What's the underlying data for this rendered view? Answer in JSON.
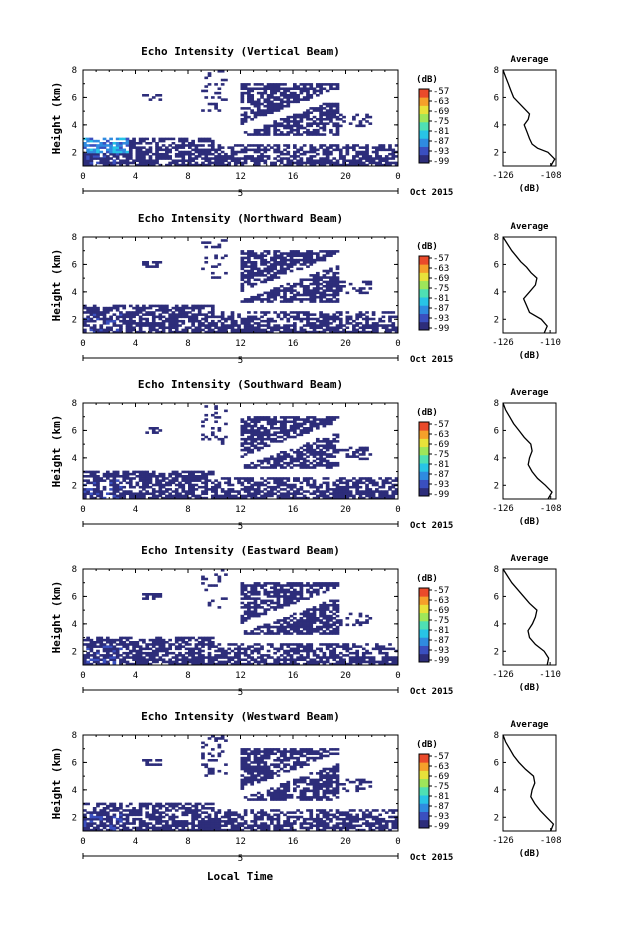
{
  "figure": {
    "xlabel": "Local Time",
    "date_label": "Oct 2015",
    "day_label": "5",
    "cbar_unit": "(dB)",
    "avg_title": "Average",
    "avg_xlabel": "(dB)",
    "colorscale": [
      "#2d2d7a",
      "#3a4fbf",
      "#2f8be0",
      "#28c4e6",
      "#4ee0b4",
      "#9ee65a",
      "#e8e23a",
      "#f5a02a",
      "#ea4a2a"
    ]
  },
  "chart_data": [
    {
      "type": "heatmap",
      "title": "Echo Intensity (Vertical Beam)",
      "ylabel": "Height (km)",
      "xlim": [
        0,
        24
      ],
      "ylim": [
        1,
        8
      ],
      "xticks": [
        "0",
        "4",
        "8",
        "12",
        "16",
        "20",
        "0"
      ],
      "yticks": [
        "2",
        "4",
        "6",
        "8"
      ],
      "colorbar": {
        "unit": "(dB)",
        "ticks": [
          "-57",
          "-63",
          "-69",
          "-75",
          "-81",
          "-87",
          "-93",
          "-99"
        ]
      },
      "average": {
        "title": "Average",
        "xlabel": "(dB)",
        "xticks": [
          "-126",
          "-108"
        ],
        "xlim": [
          -126,
          -106
        ],
        "yticks": [
          "2",
          "4",
          "6",
          "8"
        ],
        "profile": [
          [
            1.0,
            -108
          ],
          [
            1.5,
            -106.5
          ],
          [
            2.0,
            -109
          ],
          [
            2.3,
            -113
          ],
          [
            2.6,
            -115
          ],
          [
            3.0,
            -116
          ],
          [
            3.5,
            -117
          ],
          [
            4.0,
            -118
          ],
          [
            4.4,
            -116.5
          ],
          [
            4.8,
            -116
          ],
          [
            5.2,
            -118
          ],
          [
            5.6,
            -120
          ],
          [
            6.0,
            -122
          ],
          [
            6.5,
            -123
          ],
          [
            7.0,
            -124
          ],
          [
            7.5,
            -125
          ],
          [
            8.0,
            -126
          ]
        ]
      }
    },
    {
      "type": "heatmap",
      "title": "Echo Intensity (Northward Beam)",
      "ylabel": "Height (km)",
      "xlim": [
        0,
        24
      ],
      "ylim": [
        1,
        8
      ],
      "xticks": [
        "0",
        "4",
        "8",
        "12",
        "16",
        "20",
        "0"
      ],
      "yticks": [
        "2",
        "4",
        "6",
        "8"
      ],
      "colorbar": {
        "unit": "(dB)",
        "ticks": [
          "-57",
          "-63",
          "-69",
          "-75",
          "-81",
          "-87",
          "-93",
          "-99"
        ]
      },
      "average": {
        "title": "Average",
        "xlabel": "(dB)",
        "xticks": [
          "-126",
          "-110"
        ],
        "xlim": [
          -126,
          -108
        ],
        "yticks": [
          "2",
          "4",
          "6",
          "8"
        ],
        "profile": [
          [
            1.0,
            -112
          ],
          [
            1.5,
            -111
          ],
          [
            2.0,
            -113
          ],
          [
            2.5,
            -117
          ],
          [
            3.0,
            -118
          ],
          [
            3.5,
            -119
          ],
          [
            4.0,
            -117
          ],
          [
            4.5,
            -115
          ],
          [
            5.0,
            -114.5
          ],
          [
            5.4,
            -116.5
          ],
          [
            5.8,
            -118
          ],
          [
            6.2,
            -120
          ],
          [
            6.6,
            -121.5
          ],
          [
            7.0,
            -123
          ],
          [
            7.5,
            -124.5
          ],
          [
            8.0,
            -126
          ]
        ]
      }
    },
    {
      "type": "heatmap",
      "title": "Echo Intensity (Southward Beam)",
      "ylabel": "Height (km)",
      "xlim": [
        0,
        24
      ],
      "ylim": [
        1,
        8
      ],
      "xticks": [
        "0",
        "4",
        "8",
        "12",
        "16",
        "20",
        "0"
      ],
      "yticks": [
        "2",
        "4",
        "6",
        "8"
      ],
      "colorbar": {
        "unit": "(dB)",
        "ticks": [
          "-57",
          "-63",
          "-69",
          "-75",
          "-81",
          "-87",
          "-93",
          "-99"
        ]
      },
      "average": {
        "title": "Average",
        "xlabel": "(dB)",
        "xticks": [
          "-126",
          "-108"
        ],
        "xlim": [
          -126,
          -106
        ],
        "yticks": [
          "2",
          "4",
          "6",
          "8"
        ],
        "profile": [
          [
            1.0,
            -109
          ],
          [
            1.5,
            -107.5
          ],
          [
            2.0,
            -110
          ],
          [
            2.5,
            -113
          ],
          [
            3.0,
            -115
          ],
          [
            3.5,
            -116.5
          ],
          [
            4.0,
            -116
          ],
          [
            4.5,
            -115
          ],
          [
            5.0,
            -115.5
          ],
          [
            5.5,
            -118
          ],
          [
            6.0,
            -120
          ],
          [
            6.5,
            -122
          ],
          [
            7.0,
            -123.5
          ],
          [
            7.5,
            -125
          ],
          [
            8.0,
            -126
          ]
        ]
      }
    },
    {
      "type": "heatmap",
      "title": "Echo Intensity (Eastward Beam)",
      "ylabel": "Height (km)",
      "xlim": [
        0,
        24
      ],
      "ylim": [
        1,
        8
      ],
      "xticks": [
        "0",
        "4",
        "8",
        "12",
        "16",
        "20",
        "0"
      ],
      "yticks": [
        "2",
        "4",
        "6",
        "8"
      ],
      "colorbar": {
        "unit": "(dB)",
        "ticks": [
          "-57",
          "-63",
          "-69",
          "-75",
          "-81",
          "-87",
          "-93",
          "-99"
        ]
      },
      "average": {
        "title": "Average",
        "xlabel": "(dB)",
        "xticks": [
          "-126",
          "-110"
        ],
        "xlim": [
          -126,
          -108
        ],
        "yticks": [
          "2",
          "4",
          "6",
          "8"
        ],
        "profile": [
          [
            1.0,
            -111
          ],
          [
            1.5,
            -110.5
          ],
          [
            2.0,
            -112
          ],
          [
            2.5,
            -115
          ],
          [
            3.0,
            -117
          ],
          [
            3.5,
            -117.5
          ],
          [
            4.0,
            -116
          ],
          [
            4.5,
            -115
          ],
          [
            5.0,
            -114.5
          ],
          [
            5.5,
            -117
          ],
          [
            6.0,
            -119
          ],
          [
            6.5,
            -121
          ],
          [
            7.0,
            -123
          ],
          [
            7.5,
            -124.5
          ],
          [
            8.0,
            -126
          ]
        ]
      }
    },
    {
      "type": "heatmap",
      "title": "Echo Intensity (Westward Beam)",
      "ylabel": "Height (km)",
      "xlim": [
        0,
        24
      ],
      "ylim": [
        1,
        8
      ],
      "xticks": [
        "0",
        "4",
        "8",
        "12",
        "16",
        "20",
        "0"
      ],
      "yticks": [
        "2",
        "4",
        "6",
        "8"
      ],
      "colorbar": {
        "unit": "(dB)",
        "ticks": [
          "-57",
          "-63",
          "-69",
          "-75",
          "-81",
          "-87",
          "-93",
          "-99"
        ]
      },
      "average": {
        "title": "Average",
        "xlabel": "(dB)",
        "xticks": [
          "-126",
          "-108"
        ],
        "xlim": [
          -126,
          -106
        ],
        "yticks": [
          "2",
          "4",
          "6",
          "8"
        ],
        "profile": [
          [
            1.0,
            -108
          ],
          [
            1.5,
            -107
          ],
          [
            2.0,
            -109.5
          ],
          [
            2.5,
            -112
          ],
          [
            3.0,
            -114
          ],
          [
            3.5,
            -115.5
          ],
          [
            4.0,
            -115
          ],
          [
            4.5,
            -114
          ],
          [
            5.0,
            -114.5
          ],
          [
            5.5,
            -117.5
          ],
          [
            6.0,
            -120
          ],
          [
            6.5,
            -122
          ],
          [
            7.0,
            -123.5
          ],
          [
            7.5,
            -125
          ],
          [
            8.0,
            -126
          ]
        ]
      }
    }
  ]
}
